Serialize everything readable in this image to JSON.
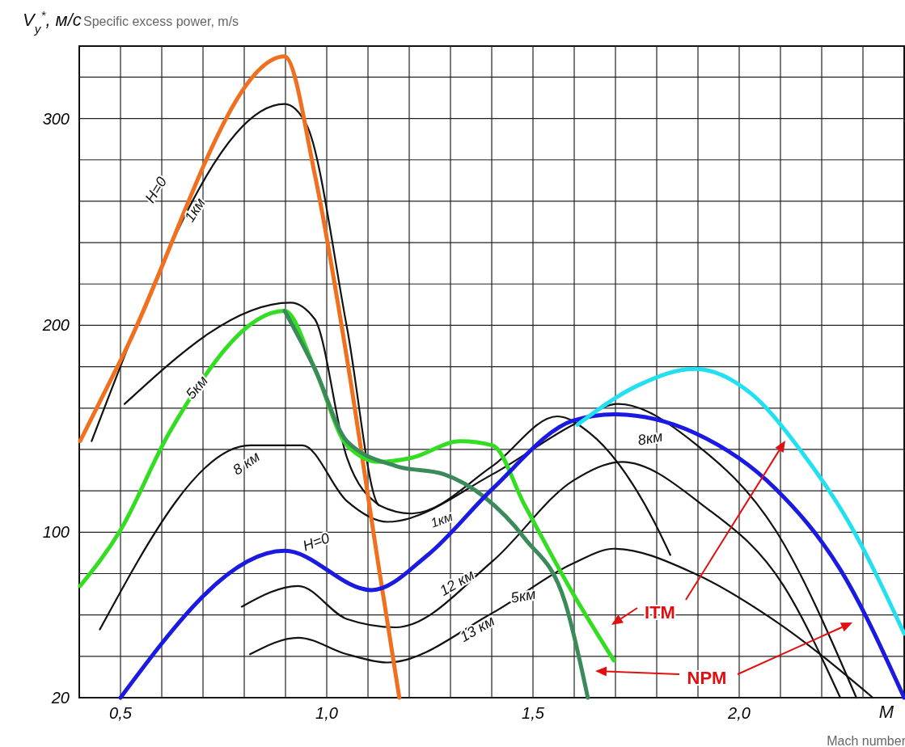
{
  "chart_data": {
    "type": "line",
    "xlabel": "Mach number",
    "ylabel": "Specific excess power, m/s",
    "xlim": [
      0.4,
      2.4
    ],
    "ylim": [
      20,
      335
    ],
    "xticks": [
      {
        "value": 0.5,
        "label": "0,5"
      },
      {
        "value": 0.6,
        "label": null
      },
      {
        "value": 0.7,
        "label": null
      },
      {
        "value": 0.8,
        "label": null
      },
      {
        "value": 0.9,
        "label": null
      },
      {
        "value": 1.0,
        "label": "1,0"
      },
      {
        "value": 1.1,
        "label": null
      },
      {
        "value": 1.2,
        "label": null
      },
      {
        "value": 1.3,
        "label": null
      },
      {
        "value": 1.4,
        "label": null
      },
      {
        "value": 1.5,
        "label": "1,5"
      },
      {
        "value": 1.6,
        "label": null
      },
      {
        "value": 1.7,
        "label": null
      },
      {
        "value": 1.8,
        "label": null
      },
      {
        "value": 1.9,
        "label": null
      },
      {
        "value": 2.0,
        "label": "2,0"
      },
      {
        "value": 2.1,
        "label": null
      },
      {
        "value": 2.2,
        "label": null
      },
      {
        "value": 2.3,
        "label": null
      }
    ],
    "yticks": [
      20,
      {
        "value": 40,
        "label": null
      },
      {
        "value": 60,
        "label": null
      },
      {
        "value": 80,
        "label": null
      },
      100,
      {
        "value": 120,
        "label": null
      },
      {
        "value": 140,
        "label": null
      },
      {
        "value": 160,
        "label": null
      },
      {
        "value": 180,
        "label": null
      },
      200,
      {
        "value": 220,
        "label": null
      },
      {
        "value": 240,
        "label": null
      },
      {
        "value": 260,
        "label": null
      },
      {
        "value": 280,
        "label": null
      },
      300,
      {
        "value": 320,
        "label": null
      }
    ],
    "grid": true,
    "series": [
      {
        "color": "#111111",
        "x": [
          0.43,
          0.898,
          0.951,
          1.049,
          1.127,
          1.206,
          1.402,
          1.559,
          1.637,
          1.794,
          1.833
        ],
        "values": [
          144,
          307,
          297,
          199,
          113,
          109,
          132,
          156,
          148,
          105,
          89
        ]
      },
      {
        "color": "#111111",
        "x": [
          0.51,
          0.912,
          0.971,
          1.049,
          1.127
        ],
        "values": [
          162,
          211,
          203,
          136,
          113
        ]
      },
      {
        "color": "#111111",
        "x": [
          0.45,
          0.814,
          0.941,
          1.049,
          1.147,
          1.402,
          1.598,
          1.706,
          1.892,
          2.088,
          2.284
        ],
        "values": [
          53,
          142,
          142,
          115,
          105,
          128,
          152,
          162,
          143,
          101,
          20
        ]
      },
      {
        "color": "#111111",
        "x": [
          0.794,
          0.931,
          1.049,
          1.167,
          1.402,
          1.598,
          1.716,
          1.912,
          2.108,
          2.245
        ],
        "values": [
          64,
          74,
          58,
          54,
          86,
          125,
          134,
          113,
          74,
          20
        ]
      },
      {
        "color": "#111111",
        "x": [
          0.814,
          0.931,
          1.049,
          1.147,
          1.402,
          1.598,
          1.696,
          1.892,
          2.088,
          2.324
        ],
        "values": [
          41,
          49,
          41,
          37,
          61,
          85,
          92,
          80,
          57,
          20
        ]
      },
      {
        "color": "#f07020",
        "x": [
          0.402,
          0.5,
          0.898,
          0.971,
          1.049,
          1.127,
          1.176
        ],
        "values": [
          144,
          183,
          330,
          273,
          184,
          82,
          20
        ]
      },
      {
        "color": "#33dd22",
        "x": [
          0.402,
          0.5,
          0.618,
          0.898,
          0.971,
          1.049,
          1.127,
          1.206,
          1.324,
          1.402,
          1.48,
          1.598,
          1.696
        ],
        "values": [
          74,
          101,
          148,
          207,
          179,
          142,
          134,
          136,
          144,
          142,
          113,
          70,
          38
        ]
      },
      {
        "color": "#3a8a5a",
        "x": [
          0.898,
          0.971,
          1.049,
          1.167,
          1.284,
          1.382,
          1.48,
          1.578,
          1.633
        ],
        "values": [
          207,
          179,
          144,
          132,
          128,
          117,
          97,
          66,
          20
        ]
      },
      {
        "color": "#1a1ae0",
        "x": [
          0.5,
          0.898,
          1.108,
          1.245,
          1.402,
          1.598,
          1.696,
          1.892,
          2.088,
          2.245,
          2.4
        ],
        "values": [
          20,
          91,
          72,
          89,
          121,
          154,
          157,
          148,
          121,
          82,
          20
        ]
      },
      {
        "color": "#22e0f0",
        "x": [
          1.608,
          1.755,
          1.892,
          2.029,
          2.147,
          2.265,
          2.4
        ],
        "values": [
          152,
          171,
          179,
          167,
          140,
          105,
          51
        ]
      }
    ],
    "annotations": [
      "V$_{y}$$^{*}$, м/с",
      "M",
      "H=0",
      "1км",
      "5км",
      "8 км",
      "H=0",
      "1км",
      "12 км",
      "13 км",
      "5км",
      "8км",
      "ITM",
      "NPM"
    ]
  }
}
